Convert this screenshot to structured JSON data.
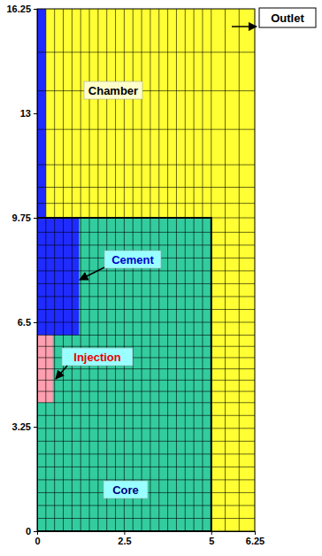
{
  "chart_data": {
    "type": "mesh",
    "xlim": [
      0,
      6.25
    ],
    "ylim": [
      0,
      16.25
    ],
    "xticks": [
      0,
      2.5,
      5,
      6.25
    ],
    "yticks": [
      0,
      3.25,
      6.5,
      9.75,
      13,
      16.25
    ],
    "mesh_x": [
      0.25,
      0.5,
      0.75,
      1.0,
      1.25,
      1.5,
      1.75,
      2.0,
      2.25,
      2.5,
      2.75,
      3.0,
      3.25,
      3.5,
      3.75,
      4.0,
      4.25,
      4.5,
      4.75,
      5.0,
      5.4,
      5.8
    ],
    "mesh_y": [
      0.4,
      0.8,
      1.2,
      1.6,
      2.0,
      2.4,
      2.8,
      3.2,
      3.6,
      4.0,
      4.35,
      4.7,
      5.05,
      5.4,
      5.75,
      6.1,
      6.5,
      6.9,
      7.3,
      7.7,
      8.1,
      8.5,
      8.9,
      9.3,
      9.75,
      10.2,
      10.7,
      11.4,
      12.5,
      13.7,
      14.9
    ],
    "regions": [
      {
        "name": "Chamber",
        "color": "#ffff33",
        "rects": [
          {
            "x": [
              0,
              6.25
            ],
            "y": [
              0,
              16.25
            ]
          }
        ]
      },
      {
        "name": "Core",
        "color": "#33cc9f",
        "rects": [
          {
            "x": [
              0,
              5
            ],
            "y": [
              0,
              9.75
            ]
          }
        ]
      },
      {
        "name": "Cement",
        "color": "#1f2bff",
        "rects": [
          {
            "x": [
              0,
              1.2
            ],
            "y": [
              6.1,
              9.75
            ]
          },
          {
            "x": [
              0,
              0.25
            ],
            "y": [
              9.75,
              16.25
            ]
          }
        ]
      },
      {
        "name": "Injection",
        "color": "#ff9fb0",
        "rects": [
          {
            "x": [
              0,
              0.45
            ],
            "y": [
              4.0,
              6.1
            ]
          }
        ]
      }
    ],
    "annotations": [
      {
        "text": "Outlet"
      }
    ]
  }
}
